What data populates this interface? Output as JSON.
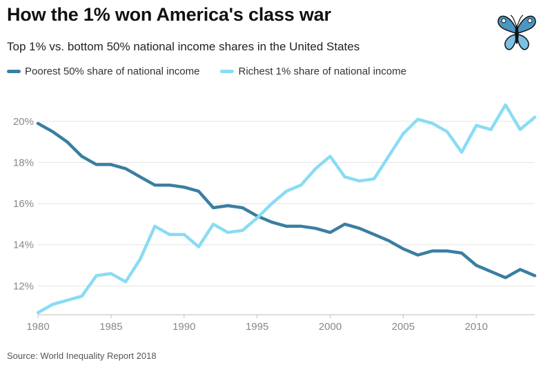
{
  "header": {
    "title": "How the 1% won America's class war",
    "subtitle": "Top 1% vs. bottom 50% national income shares in the United States"
  },
  "footer": {
    "source": "Source: World Inequality Report 2018"
  },
  "logo": {
    "icon": "butterfly-icon"
  },
  "chart_data": {
    "type": "line",
    "title": "How the 1% won America's class war",
    "subtitle": "Top 1% vs. bottom 50% national income shares in the United States",
    "xlabel": "",
    "ylabel": "",
    "x": [
      1980,
      1981,
      1982,
      1983,
      1984,
      1985,
      1986,
      1987,
      1988,
      1989,
      1990,
      1991,
      1992,
      1993,
      1994,
      1995,
      1996,
      1997,
      1998,
      1999,
      2000,
      2001,
      2002,
      2003,
      2004,
      2005,
      2006,
      2007,
      2008,
      2009,
      2010,
      2011,
      2012,
      2013,
      2014
    ],
    "xticks": [
      "1980",
      "1985",
      "1990",
      "1995",
      "2000",
      "2005",
      "2010"
    ],
    "yticks": [
      "12%",
      "14%",
      "16%",
      "18%",
      "20%"
    ],
    "ylim": [
      10.6,
      21.2
    ],
    "xlim": [
      1980,
      2014
    ],
    "grid": true,
    "legend_position": "top-left",
    "series": [
      {
        "name": "Poorest 50% share of national income",
        "color": "#3a7ea1",
        "values": [
          19.9,
          19.5,
          19.0,
          18.3,
          17.9,
          17.9,
          17.7,
          17.3,
          16.9,
          16.9,
          16.8,
          16.6,
          15.8,
          15.9,
          15.8,
          15.4,
          15.1,
          14.9,
          14.9,
          14.8,
          14.6,
          15.0,
          14.8,
          14.5,
          14.2,
          13.8,
          13.5,
          13.7,
          13.7,
          13.6,
          13.0,
          12.7,
          12.4,
          12.8,
          12.5
        ]
      },
      {
        "name": "Richest 1% share of national income",
        "color": "#89dcf3",
        "values": [
          10.7,
          11.1,
          11.3,
          11.5,
          12.5,
          12.6,
          12.2,
          13.3,
          14.9,
          14.5,
          14.5,
          13.9,
          15.0,
          14.6,
          14.7,
          15.3,
          16.0,
          16.6,
          16.9,
          17.7,
          18.3,
          17.3,
          17.1,
          17.2,
          18.3,
          19.4,
          20.1,
          19.9,
          19.5,
          18.5,
          19.8,
          19.6,
          20.8,
          19.6,
          20.2
        ]
      }
    ]
  }
}
